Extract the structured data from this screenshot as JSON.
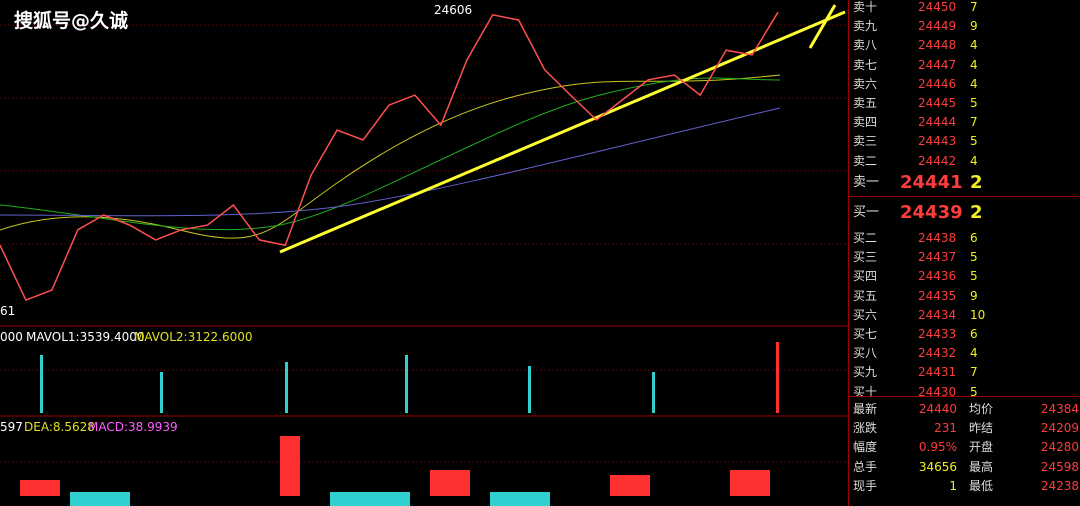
{
  "watermark": "搜狐号@久诚",
  "price_chart": {
    "type": "line",
    "high_marker": "24606",
    "low_marker": "61",
    "ylim": [
      24012,
      24629
    ],
    "values": [
      24165,
      24061,
      24080,
      24194,
      24222,
      24203,
      24175,
      24194,
      24203,
      24241,
      24175,
      24165,
      24298,
      24383,
      24364,
      24430,
      24449,
      24392,
      24515,
      24601,
      24591,
      24497,
      24449,
      24402,
      24440,
      24478,
      24487,
      24449,
      24534,
      24525,
      24606
    ]
  },
  "volume_panel": {
    "prefix": "000",
    "mavol1": "MAVOL1:3539.4000",
    "mavol2": "MAVOL2:3122.6000"
  },
  "macd_panel": {
    "prefix": "597",
    "dea": "DEA:8.5628",
    "macd": "MACD:38.9939"
  },
  "asks": [
    {
      "label": "卖十",
      "price": 24450,
      "volume": 7
    },
    {
      "label": "卖九",
      "price": 24449,
      "volume": 9
    },
    {
      "label": "卖八",
      "price": 24448,
      "volume": 4
    },
    {
      "label": "卖七",
      "price": 24447,
      "volume": 4
    },
    {
      "label": "卖六",
      "price": 24446,
      "volume": 4
    },
    {
      "label": "卖五",
      "price": 24445,
      "volume": 5
    },
    {
      "label": "卖四",
      "price": 24444,
      "volume": 7
    },
    {
      "label": "卖三",
      "price": 24443,
      "volume": 5
    },
    {
      "label": "卖二",
      "price": 24442,
      "volume": 4
    },
    {
      "label": "卖一",
      "price": 24441,
      "volume": 2
    }
  ],
  "bids": [
    {
      "label": "买一",
      "price": 24439,
      "volume": 2
    },
    {
      "label": "买二",
      "price": 24438,
      "volume": 6
    },
    {
      "label": "买三",
      "price": 24437,
      "volume": 5
    },
    {
      "label": "买四",
      "price": 24436,
      "volume": 5
    },
    {
      "label": "买五",
      "price": 24435,
      "volume": 9
    },
    {
      "label": "买六",
      "price": 24434,
      "volume": 10
    },
    {
      "label": "买七",
      "price": 24433,
      "volume": 6
    },
    {
      "label": "买八",
      "price": 24432,
      "volume": 4
    },
    {
      "label": "买九",
      "price": 24431,
      "volume": 7
    },
    {
      "label": "买十",
      "price": 24430,
      "volume": 5
    }
  ],
  "stats": [
    [
      {
        "label": "最新",
        "value": "24440"
      },
      {
        "label": "均价",
        "value": "24384"
      }
    ],
    [
      {
        "label": "涨跌",
        "value": "231"
      },
      {
        "label": "昨结",
        "value": "24209"
      }
    ],
    [
      {
        "label": "幅度",
        "value": "0.95%"
      },
      {
        "label": "开盘",
        "value": "24280"
      }
    ],
    [
      {
        "label": "总手",
        "value": "34656"
      },
      {
        "label": "最高",
        "value": "24598"
      }
    ],
    [
      {
        "label": "现手",
        "value": "1"
      },
      {
        "label": "最低",
        "value": "24238"
      }
    ]
  ]
}
